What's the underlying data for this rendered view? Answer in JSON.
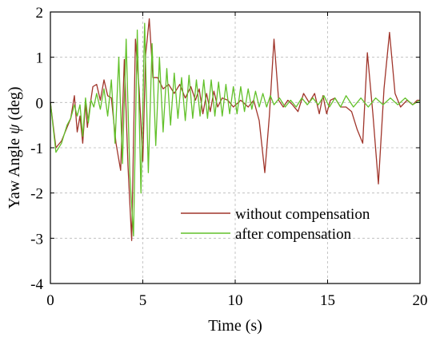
{
  "chart_data": {
    "type": "line",
    "xlabel": "Time (s)",
    "ylabel_prefix": "Yaw Angle ",
    "ylabel_symbol": "ψ",
    "ylabel_suffix": " (deg)",
    "xlim": [
      0,
      20
    ],
    "ylim": [
      -4,
      2
    ],
    "xticks": [
      0,
      5,
      10,
      15,
      20
    ],
    "xtick_labels": [
      "0",
      "5",
      "10",
      "15",
      "20"
    ],
    "yticks": [
      -4,
      -3,
      -2,
      -1,
      0,
      1,
      2
    ],
    "ytick_labels": [
      "-4",
      "-3",
      "-2",
      "-1",
      "0",
      "1",
      "2"
    ],
    "grid": true,
    "legend_position": "lower-right",
    "series": [
      {
        "name": "without compensation",
        "color": "#a0352b",
        "x": [
          0,
          0.3,
          0.6,
          0.9,
          1.1,
          1.3,
          1.45,
          1.6,
          1.75,
          1.9,
          2.0,
          2.15,
          2.3,
          2.5,
          2.7,
          2.9,
          3.1,
          3.3,
          3.55,
          3.8,
          4.0,
          4.2,
          4.4,
          4.6,
          4.8,
          5.0,
          5.15,
          5.35,
          5.55,
          5.8,
          6.1,
          6.4,
          6.7,
          7.0,
          7.3,
          7.6,
          7.85,
          8.05,
          8.25,
          8.45,
          8.65,
          8.85,
          9.05,
          9.3,
          9.6,
          9.9,
          10.3,
          10.7,
          11.0,
          11.3,
          11.6,
          11.85,
          12.1,
          12.35,
          12.6,
          12.85,
          13.1,
          13.4,
          13.7,
          14.0,
          14.3,
          14.55,
          14.75,
          14.95,
          15.15,
          15.4,
          15.7,
          16.0,
          16.3,
          16.6,
          16.9,
          17.15,
          17.45,
          17.75,
          18.05,
          18.35,
          18.65,
          18.95,
          19.3,
          19.6,
          19.85,
          20.0
        ],
        "y": [
          0,
          -1.0,
          -0.85,
          -0.55,
          -0.35,
          0.15,
          -0.65,
          -0.3,
          -0.9,
          0.0,
          -0.55,
          -0.05,
          0.35,
          0.4,
          0.05,
          0.5,
          0.15,
          0.1,
          -0.9,
          -1.5,
          0.95,
          -1.4,
          -3.05,
          1.4,
          0.3,
          -1.3,
          1.05,
          1.85,
          0.55,
          0.55,
          0.3,
          0.4,
          0.2,
          0.4,
          0.1,
          0.35,
          0.05,
          0.3,
          -0.25,
          0.2,
          -0.2,
          0.25,
          -0.1,
          0.1,
          0.05,
          -0.1,
          0.05,
          -0.1,
          0.05,
          -0.4,
          -1.55,
          -0.3,
          1.4,
          0.05,
          -0.1,
          0.05,
          -0.05,
          -0.2,
          0.2,
          0.0,
          0.2,
          -0.25,
          0.15,
          -0.25,
          0.05,
          0.1,
          -0.1,
          -0.1,
          -0.2,
          -0.6,
          -0.9,
          1.1,
          -0.25,
          -1.8,
          0.3,
          1.55,
          0.2,
          -0.1,
          0.05,
          -0.05,
          0.05,
          0.05
        ]
      },
      {
        "name": "after compensation",
        "color": "#62c12a",
        "x": [
          0,
          0.3,
          0.6,
          0.9,
          1.1,
          1.3,
          1.45,
          1.6,
          1.75,
          1.9,
          2.05,
          2.2,
          2.35,
          2.5,
          2.7,
          2.9,
          3.1,
          3.3,
          3.5,
          3.7,
          3.9,
          4.1,
          4.3,
          4.5,
          4.7,
          4.9,
          5.1,
          5.3,
          5.5,
          5.7,
          5.9,
          6.1,
          6.3,
          6.5,
          6.7,
          6.9,
          7.1,
          7.3,
          7.5,
          7.7,
          7.9,
          8.1,
          8.3,
          8.5,
          8.7,
          8.9,
          9.1,
          9.3,
          9.5,
          9.7,
          9.9,
          10.1,
          10.3,
          10.5,
          10.7,
          10.9,
          11.1,
          11.3,
          11.5,
          11.7,
          11.9,
          12.1,
          12.4,
          12.7,
          13.0,
          13.3,
          13.6,
          13.9,
          14.2,
          14.5,
          14.8,
          15.1,
          15.4,
          15.7,
          16.0,
          16.4,
          16.8,
          17.2,
          17.6,
          18.0,
          18.4,
          18.8,
          19.2,
          19.6,
          20.0
        ],
        "y": [
          0,
          -1.1,
          -0.9,
          -0.5,
          -0.35,
          -0.05,
          -0.3,
          -0.05,
          -0.75,
          0.1,
          -0.45,
          0.05,
          -0.1,
          0.2,
          -0.15,
          0.3,
          -0.3,
          0.5,
          -0.9,
          1.0,
          -1.35,
          1.4,
          -1.6,
          -2.95,
          1.6,
          -2.0,
          1.75,
          -1.55,
          1.3,
          -0.95,
          1.0,
          -0.65,
          0.75,
          -0.5,
          0.65,
          -0.35,
          0.55,
          -0.4,
          0.6,
          -0.35,
          0.5,
          -0.3,
          0.5,
          -0.35,
          0.5,
          -0.3,
          0.45,
          -0.3,
          0.4,
          -0.25,
          0.35,
          -0.25,
          0.35,
          -0.2,
          0.3,
          -0.15,
          0.25,
          -0.1,
          0.2,
          -0.1,
          0.15,
          -0.05,
          0.1,
          -0.1,
          0.05,
          -0.1,
          0.1,
          -0.05,
          0.1,
          -0.05,
          0.15,
          -0.1,
          0.1,
          -0.1,
          0.15,
          -0.1,
          0.1,
          -0.1,
          0.1,
          -0.05,
          0.1,
          -0.05,
          0.1,
          -0.05,
          0.05
        ]
      }
    ]
  }
}
